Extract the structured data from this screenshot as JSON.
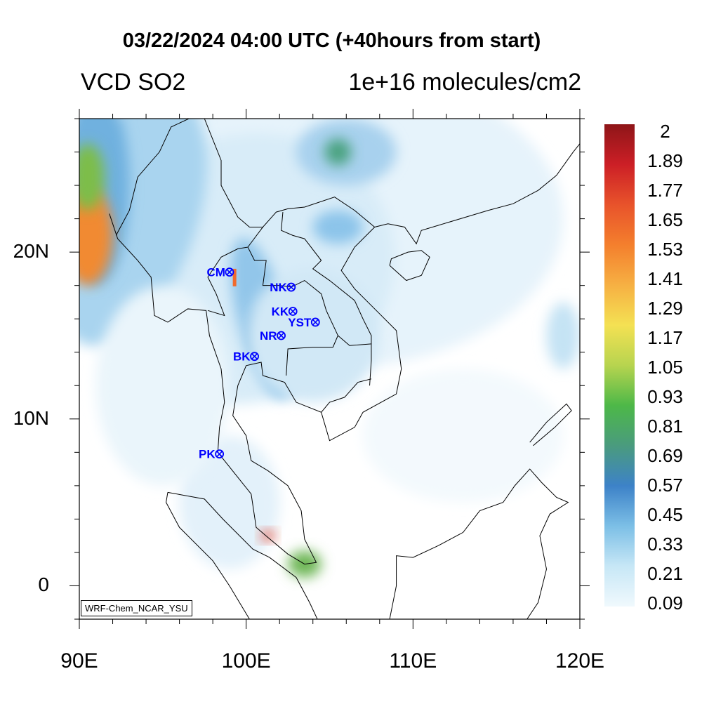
{
  "title": "03/22/2024 04:00 UTC (+40hours from start)",
  "left_string": "VCD SO2",
  "right_string": "1e+16 molecules/cm2",
  "credit": "WRF-Chem_NCAR_YSU",
  "map": {
    "lon_range": [
      90,
      120
    ],
    "lat_range": [
      -2,
      28
    ],
    "x_ticks": [
      {
        "value": 90,
        "label": "90E"
      },
      {
        "value": 100,
        "label": "100E"
      },
      {
        "value": 110,
        "label": "110E"
      },
      {
        "value": 120,
        "label": "120E"
      }
    ],
    "y_ticks": [
      {
        "value": 0,
        "label": "0"
      },
      {
        "value": 10,
        "label": "10N"
      },
      {
        "value": 20,
        "label": "20N"
      }
    ]
  },
  "stations": [
    {
      "code": "CM",
      "lon": 99.0,
      "lat": 18.8
    },
    {
      "code": "NK",
      "lon": 102.7,
      "lat": 17.9
    },
    {
      "code": "KK",
      "lon": 102.8,
      "lat": 16.45
    },
    {
      "code": "YST",
      "lon": 104.15,
      "lat": 15.8
    },
    {
      "code": "NR",
      "lon": 102.1,
      "lat": 15.0
    },
    {
      "code": "BK",
      "lon": 100.5,
      "lat": 13.75
    },
    {
      "code": "PK",
      "lon": 98.4,
      "lat": 7.9
    }
  ],
  "colorbar": {
    "labels": [
      "2",
      "1.89",
      "1.77",
      "1.65",
      "1.53",
      "1.41",
      "1.29",
      "1.17",
      "1.05",
      "0.93",
      "0.81",
      "0.69",
      "0.57",
      "0.45",
      "0.33",
      "0.21",
      "0.09"
    ],
    "colors": [
      "#8e1518",
      "#cc1f26",
      "#e8532b",
      "#f47f2d",
      "#f6b043",
      "#f4e153",
      "#b7d44f",
      "#4db848",
      "#4a9b7e",
      "#3d82c8",
      "#7cbfe6",
      "#c7e7f6",
      "#f0f9fd"
    ]
  },
  "station_color": "#0000ff"
}
